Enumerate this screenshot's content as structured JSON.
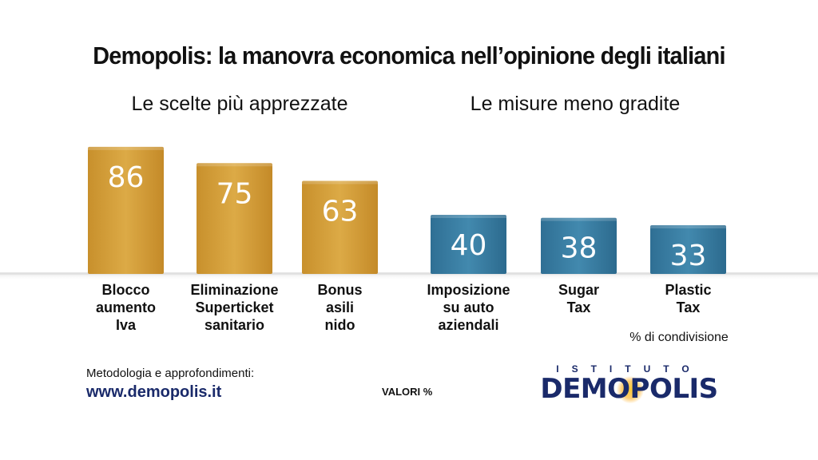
{
  "title": "Demopolis: la manovra economica nell’opinione degli italiani",
  "chart_data": {
    "type": "bar",
    "title": "Demopolis: la manovra economica nell’opinione degli italiani",
    "groups": [
      {
        "name": "Le scelte più apprezzate",
        "color": "#d9a53e",
        "categories": [
          [
            "Blocco",
            "aumento",
            "Iva"
          ],
          [
            "Eliminazione",
            "Superticket",
            "sanitario"
          ],
          [
            "Bonus",
            "asili",
            "nido"
          ]
        ],
        "values": [
          86,
          75,
          63
        ]
      },
      {
        "name": "Le misure meno gradite",
        "color": "#3e82a8",
        "categories": [
          [
            "Imposizione",
            "su auto",
            "aziendali"
          ],
          [
            "Sugar",
            "Tax"
          ],
          [
            "Plastic",
            "Tax"
          ]
        ],
        "values": [
          40,
          38,
          33
        ]
      }
    ],
    "unit_note": "% di condivisione",
    "ylim": [
      0,
      100
    ]
  },
  "notes": {
    "percent": "% di condivisione",
    "valori": "VALORI %"
  },
  "footer": {
    "label": "Metodologia e approfondimenti:",
    "url": "www.demopolis.it"
  },
  "logo": {
    "top": "ISTITUTO",
    "main": "DEMOPOLIS"
  }
}
